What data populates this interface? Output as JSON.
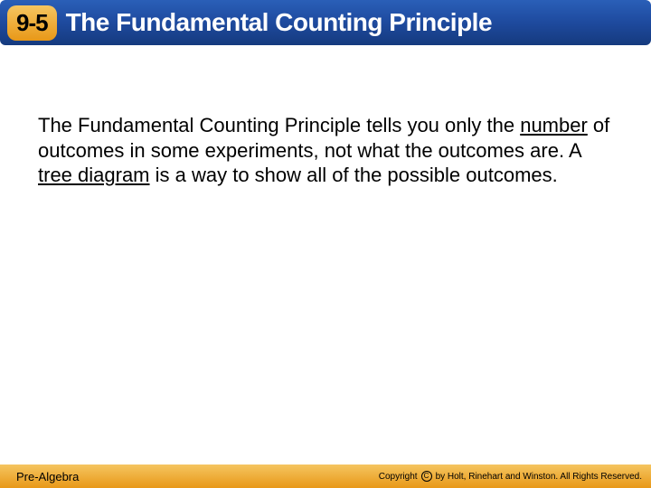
{
  "header": {
    "section_number": "9-5",
    "title": "The Fundamental Counting Principle",
    "bar_gradient_top": "#2a5fb8",
    "bar_gradient_bottom": "#153a7e",
    "badge_gradient_top": "#f5c560",
    "badge_gradient_bottom": "#e89818",
    "title_color": "#ffffff",
    "title_fontsize": 28
  },
  "body": {
    "text_prefix": "The Fundamental Counting Principle tells you only the ",
    "underlined_1": "number",
    "text_mid": " of outcomes in some experiments, not what the outcomes are. A ",
    "underlined_2": "tree diagram",
    "text_suffix": " is a way to show all of the possible outcomes.",
    "fontsize": 22,
    "text_color": "#000000"
  },
  "footer": {
    "left_text": "Pre-Algebra",
    "copyright_label": "Copyright",
    "copyright_holder": "by Holt, Rinehart and Winston. All Rights Reserved.",
    "bar_gradient_top": "#f5c560",
    "bar_gradient_bottom": "#e89818"
  }
}
